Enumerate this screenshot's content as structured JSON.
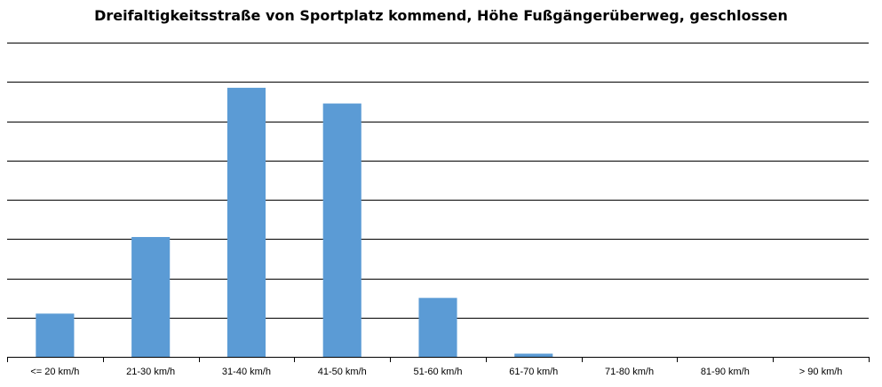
{
  "chart_data": {
    "type": "bar",
    "title": "Dreifaltigkeitsstraße von Sportplatz kommend, Höhe Fußgängerüberweg, geschlossen",
    "xlabel": "",
    "ylabel": "",
    "categories": [
      "<= 20 km/h",
      "21-30 km/h",
      "31-40 km/h",
      "41-50 km/h",
      "51-60 km/h",
      "61-70 km/h",
      "71-80 km/h",
      "81-90 km/h",
      "> 90 km/h"
    ],
    "values": [
      1.1,
      3.05,
      6.85,
      6.45,
      1.5,
      0.08,
      0,
      0,
      0
    ],
    "ylim": [
      0,
      8
    ],
    "yticks_labeled": false,
    "grid": true,
    "legend": "none",
    "colors": {
      "bar": "#5b9bd5",
      "grid": "#000000",
      "axis": "#000000"
    }
  }
}
